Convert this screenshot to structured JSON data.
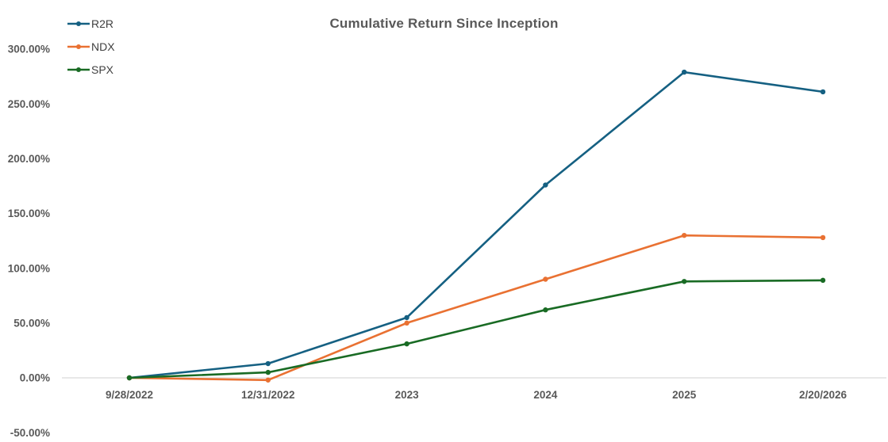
{
  "chart_data": {
    "type": "line",
    "title": "Cumulative Return Since Inception",
    "categories": [
      "9/28/2022",
      "12/31/2022",
      "2023",
      "2024",
      "2025",
      "2/20/2026"
    ],
    "series": [
      {
        "name": "R2R",
        "color": "#156082",
        "values": [
          0,
          13,
          55,
          176,
          279,
          261
        ]
      },
      {
        "name": "NDX",
        "color": "#E97132",
        "values": [
          0,
          -2,
          50,
          90,
          130,
          128
        ]
      },
      {
        "name": "SPX",
        "color": "#196B24",
        "values": [
          0,
          5,
          31,
          62,
          88,
          89
        ]
      }
    ],
    "ylabel": "",
    "xlabel": "",
    "ylim": [
      -50,
      300
    ],
    "ytick_step": 50,
    "ytick_labels": [
      "300.00%",
      "250.00%",
      "200.00%",
      "150.00%",
      "100.00%",
      "50.00%",
      "0.00%",
      "-50.00%"
    ],
    "grid": false,
    "legend_position": "top-left",
    "marker": "circle",
    "colors": {
      "axis_line": "#D9D9D9",
      "tick_text": "#595959",
      "legend_text": "#404040",
      "title_text": "#595959"
    }
  }
}
